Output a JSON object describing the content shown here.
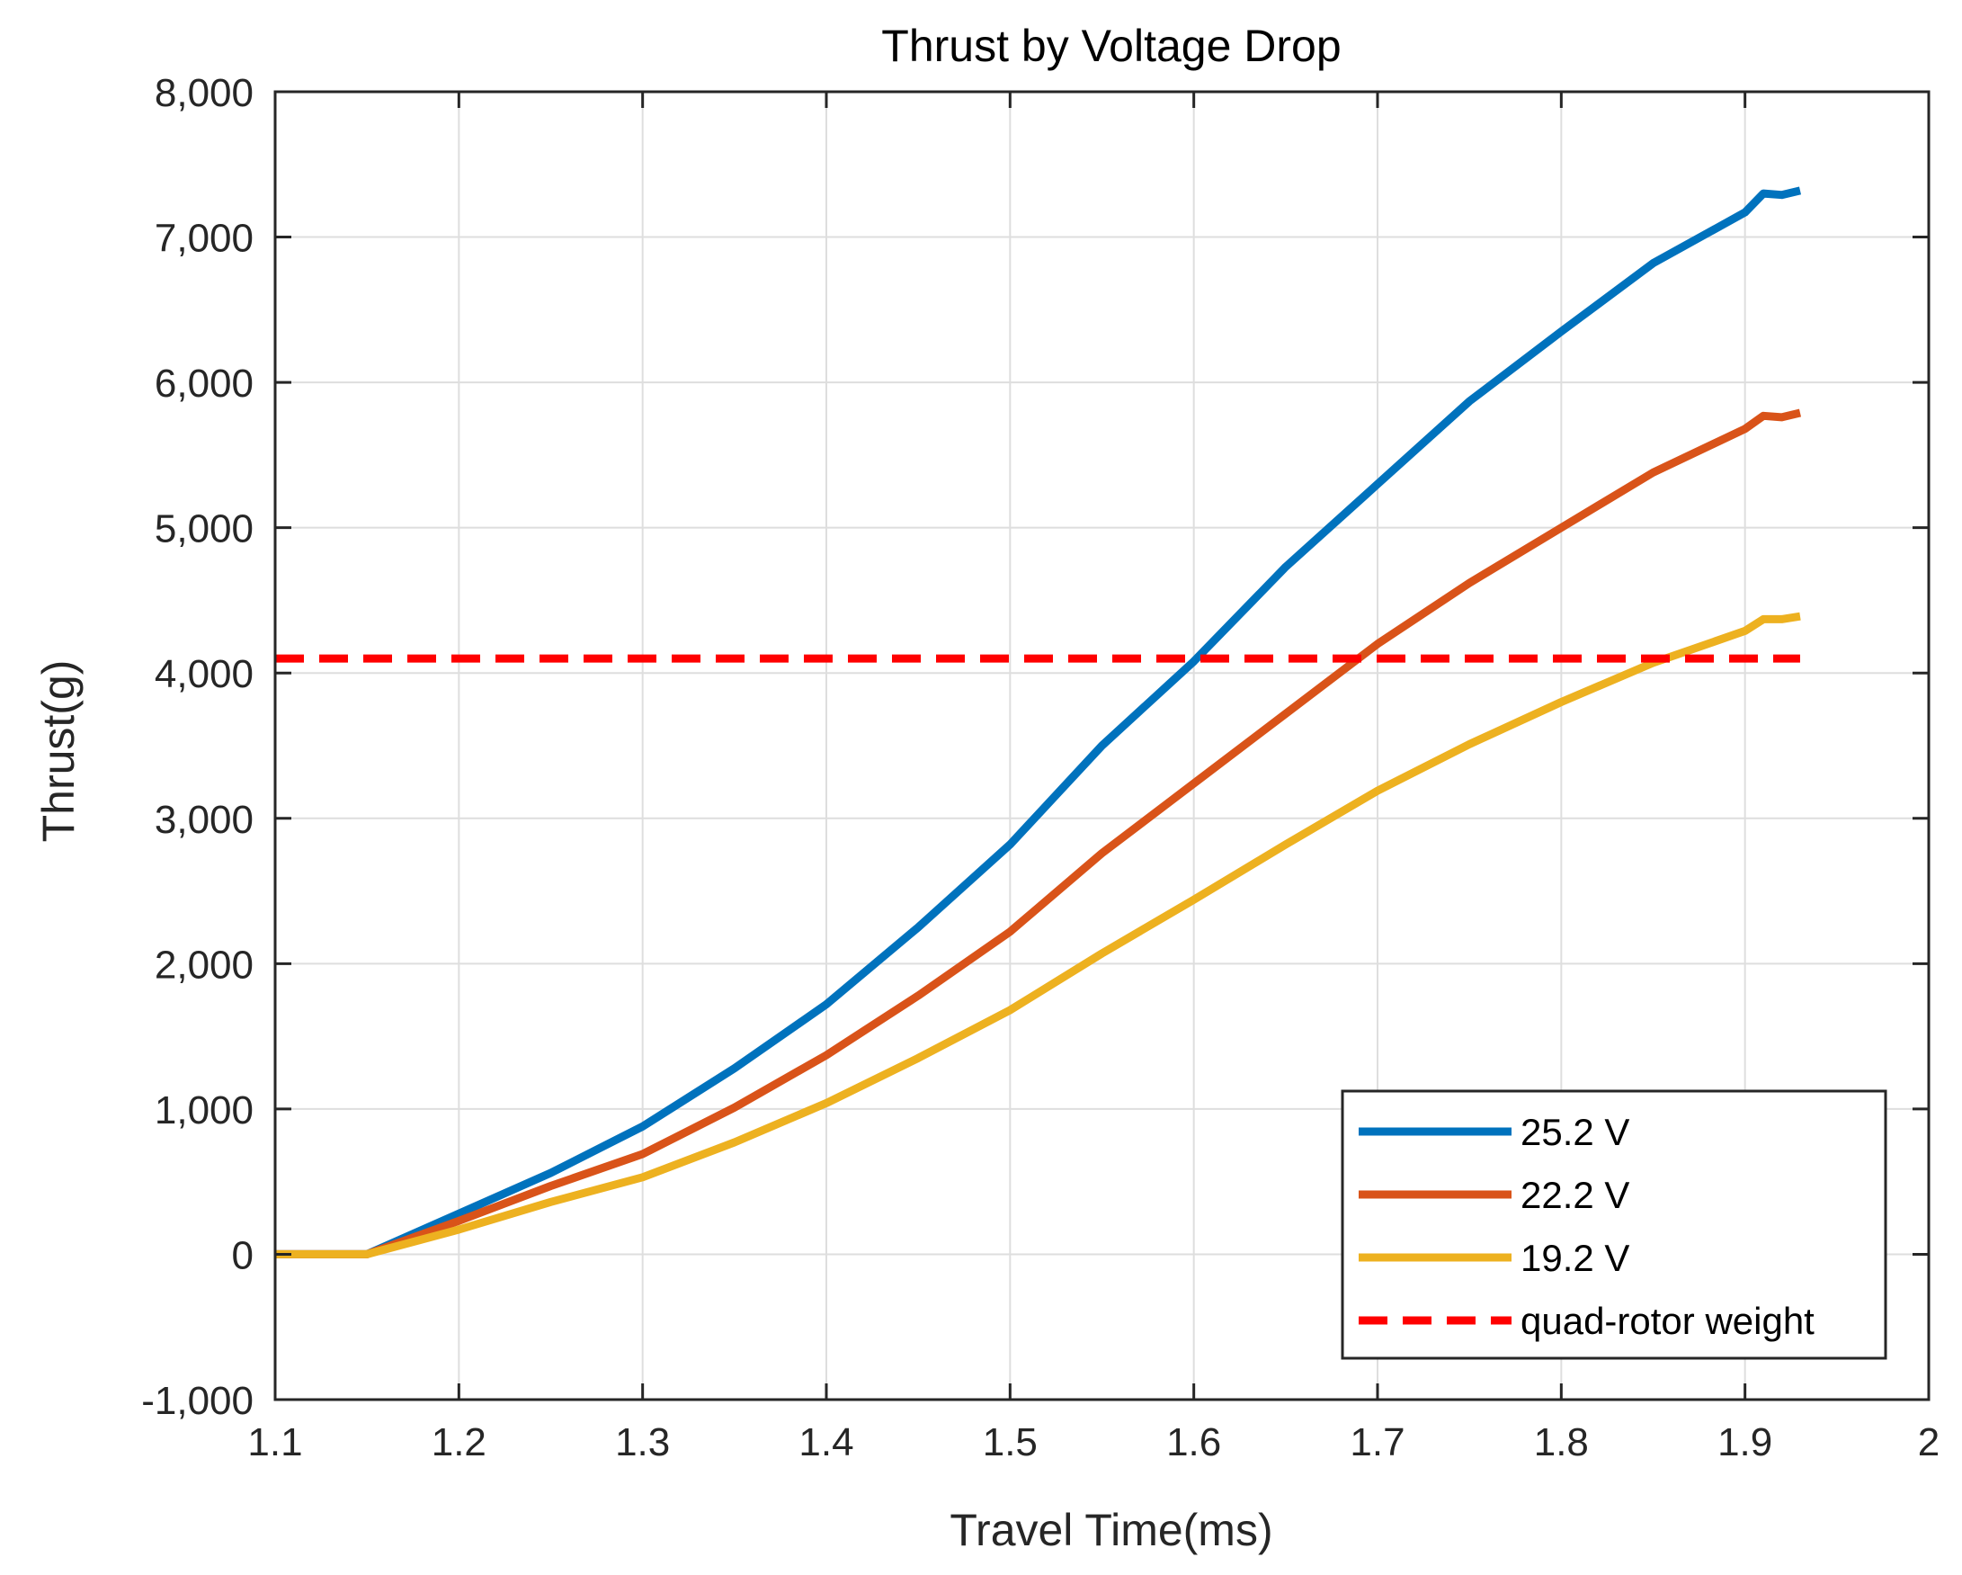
{
  "chart_data": {
    "type": "line",
    "title": "Thrust by Voltage Drop",
    "xlabel": "Travel Time(ms)",
    "ylabel": "Thrust(g)",
    "xlim": [
      1.1,
      2.0
    ],
    "ylim": [
      -1000,
      8000
    ],
    "xticks": [
      1.1,
      1.2,
      1.3,
      1.4,
      1.5,
      1.6,
      1.7,
      1.8,
      1.9,
      2.0
    ],
    "xtick_labels": [
      "1.1",
      "1.2",
      "1.3",
      "1.4",
      "1.5",
      "1.6",
      "1.7",
      "1.8",
      "1.9",
      "2"
    ],
    "yticks": [
      -1000,
      0,
      1000,
      2000,
      3000,
      4000,
      5000,
      6000,
      7000,
      8000
    ],
    "ytick_labels": [
      "-1,000",
      "0",
      "1,000",
      "2,000",
      "3,000",
      "4,000",
      "5,000",
      "6,000",
      "7,000",
      "8,000"
    ],
    "grid": true,
    "legend_position": "bottom-right",
    "x": [
      1.1,
      1.14,
      1.15,
      1.2,
      1.25,
      1.3,
      1.35,
      1.4,
      1.45,
      1.5,
      1.55,
      1.6,
      1.65,
      1.7,
      1.75,
      1.8,
      1.85,
      1.9,
      1.91,
      1.92,
      1.93
    ],
    "series": [
      {
        "name": "25.2 V",
        "color": "#0072BD",
        "style": "solid",
        "values": [
          0,
          0,
          0,
          280,
          560,
          880,
          1280,
          1720,
          2250,
          2820,
          3500,
          4080,
          4730,
          5300,
          5870,
          6350,
          6820,
          7170,
          7300,
          7290,
          7320
        ]
      },
      {
        "name": "22.2 V",
        "color": "#D95319",
        "style": "solid",
        "values": [
          0,
          0,
          0,
          230,
          470,
          690,
          1010,
          1370,
          1780,
          2220,
          2760,
          3240,
          3720,
          4200,
          4620,
          5000,
          5380,
          5680,
          5770,
          5760,
          5790
        ]
      },
      {
        "name": "19.2 V",
        "color": "#EDB120",
        "style": "solid",
        "values": [
          0,
          0,
          0,
          170,
          360,
          530,
          770,
          1040,
          1350,
          1680,
          2070,
          2440,
          2820,
          3190,
          3510,
          3800,
          4070,
          4290,
          4370,
          4370,
          4390
        ]
      },
      {
        "name": "quad-rotor weight",
        "color": "#FF0000",
        "style": "dashed",
        "x_range": [
          1.1,
          1.93
        ],
        "constant": 4100
      }
    ]
  }
}
